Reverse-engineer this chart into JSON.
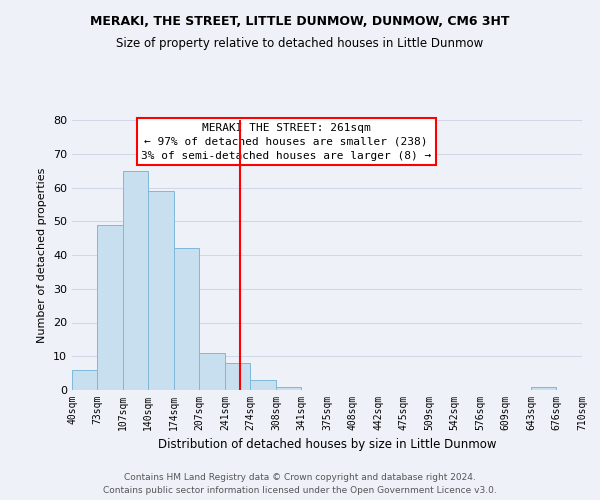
{
  "title": "MERAKI, THE STREET, LITTLE DUNMOW, DUNMOW, CM6 3HT",
  "subtitle": "Size of property relative to detached houses in Little Dunmow",
  "xlabel": "Distribution of detached houses by size in Little Dunmow",
  "ylabel": "Number of detached properties",
  "bin_edges": [
    40,
    73,
    107,
    140,
    174,
    207,
    241,
    274,
    308,
    341,
    375,
    408,
    442,
    475,
    509,
    542,
    576,
    609,
    643,
    676,
    710
  ],
  "bar_heights": [
    6,
    49,
    65,
    59,
    42,
    11,
    8,
    3,
    1,
    0,
    0,
    0,
    0,
    0,
    0,
    0,
    0,
    0,
    1,
    0
  ],
  "bar_color": "#c8dff0",
  "bar_edge_color": "#7fb8d8",
  "grid_color": "#d0d8e8",
  "vline_x": 261,
  "vline_color": "red",
  "ylim": [
    0,
    80
  ],
  "yticks": [
    0,
    10,
    20,
    30,
    40,
    50,
    60,
    70,
    80
  ],
  "xtick_labels": [
    "40sqm",
    "73sqm",
    "107sqm",
    "140sqm",
    "174sqm",
    "207sqm",
    "241sqm",
    "274sqm",
    "308sqm",
    "341sqm",
    "375sqm",
    "408sqm",
    "442sqm",
    "475sqm",
    "509sqm",
    "542sqm",
    "576sqm",
    "609sqm",
    "643sqm",
    "676sqm",
    "710sqm"
  ],
  "annotation_title": "MERAKI THE STREET: 261sqm",
  "annotation_line1": "← 97% of detached houses are smaller (238)",
  "annotation_line2": "3% of semi-detached houses are larger (8) →",
  "annotation_box_color": "white",
  "annotation_box_edge_color": "red",
  "footnote1": "Contains HM Land Registry data © Crown copyright and database right 2024.",
  "footnote2": "Contains public sector information licensed under the Open Government Licence v3.0.",
  "background_color": "#eef2f8"
}
